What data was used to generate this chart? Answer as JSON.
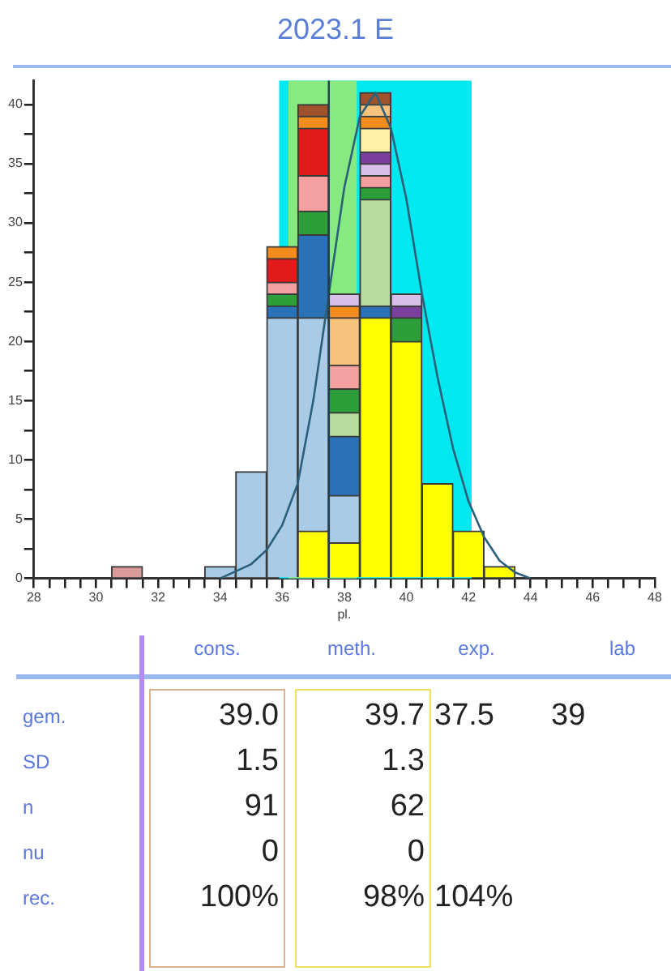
{
  "chart_data": {
    "type": "bar",
    "title": "2023.1 E",
    "xlabel": "pl.",
    "x": [
      31,
      32,
      33,
      34,
      35,
      36,
      37,
      38,
      39,
      40,
      41,
      42,
      43
    ],
    "series": [
      {
        "color": "#ffff00",
        "values": [
          null,
          null,
          null,
          null,
          null,
          null,
          4,
          3,
          22,
          20,
          8,
          4,
          1
        ]
      },
      {
        "color": "#a9cbe6",
        "values": [
          null,
          null,
          null,
          1,
          9,
          22,
          18,
          4,
          null,
          null,
          null,
          null,
          null
        ]
      },
      {
        "color": "#d99a9a",
        "values": [
          1,
          null,
          null,
          null,
          null,
          null,
          null,
          null,
          null,
          null,
          null,
          null,
          null
        ]
      },
      {
        "color": "#2a72b8",
        "values": [
          null,
          null,
          null,
          null,
          null,
          1,
          7,
          5,
          1,
          null,
          null,
          null,
          null
        ]
      },
      {
        "color": "#b8dc9e",
        "values": [
          null,
          null,
          null,
          null,
          null,
          null,
          null,
          2,
          9,
          null,
          null,
          null,
          null
        ]
      },
      {
        "color": "#2e9e3a",
        "values": [
          null,
          null,
          null,
          null,
          null,
          1,
          2,
          2,
          1,
          2,
          null,
          null,
          null
        ]
      },
      {
        "color": "#7b3f9e",
        "values": [
          null,
          null,
          null,
          null,
          null,
          null,
          null,
          null,
          null,
          1,
          null,
          null,
          null
        ]
      },
      {
        "color": "#f4a0a0",
        "values": [
          null,
          null,
          null,
          null,
          null,
          1,
          3,
          2,
          1,
          null,
          null,
          null,
          null
        ]
      },
      {
        "color": "#e31a1c",
        "values": [
          null,
          null,
          null,
          null,
          null,
          2,
          4,
          null,
          null,
          null,
          null,
          null,
          null
        ]
      },
      {
        "color": "#f6c27c",
        "values": [
          null,
          null,
          null,
          null,
          null,
          null,
          null,
          4,
          null,
          null,
          null,
          null,
          null
        ]
      },
      {
        "color": "#d8bfe8",
        "values": [
          null,
          null,
          null,
          null,
          null,
          null,
          null,
          null,
          1,
          1,
          null,
          null,
          null
        ]
      },
      {
        "color": "#7b3f9e",
        "values": [
          null,
          null,
          null,
          null,
          null,
          null,
          null,
          null,
          1,
          null,
          null,
          null,
          null
        ]
      },
      {
        "color": "#fff2a8",
        "values": [
          null,
          null,
          null,
          null,
          null,
          null,
          null,
          null,
          2,
          null,
          null,
          null,
          null
        ]
      },
      {
        "color": "#f28c1c",
        "values": [
          null,
          null,
          null,
          null,
          null,
          1,
          1,
          1,
          1,
          null,
          null,
          null,
          null
        ]
      },
      {
        "color": "#f6c27c",
        "values": [
          null,
          null,
          null,
          null,
          null,
          null,
          null,
          null,
          1,
          null,
          null,
          null,
          null
        ]
      },
      {
        "color": "#a0522d",
        "values": [
          null,
          null,
          null,
          null,
          null,
          null,
          1,
          null,
          1,
          null,
          null,
          null,
          null
        ]
      },
      {
        "color": "#d8bfe8",
        "values": [
          null,
          null,
          null,
          null,
          null,
          null,
          null,
          1,
          null,
          null,
          null,
          null,
          null
        ]
      },
      {
        "type": "line",
        "color": "#2b5f7a",
        "x": [
          34,
          34.5,
          35,
          35.5,
          36,
          36.5,
          37,
          37.5,
          38,
          38.5,
          39,
          39.5,
          40,
          40.5,
          41,
          41.5,
          42,
          42.5,
          43,
          43.5,
          44
        ],
        "values": [
          0,
          0.6,
          1.2,
          2.4,
          4.5,
          8,
          15,
          24,
          33,
          39,
          41,
          38,
          32,
          24,
          17,
          11,
          6.5,
          3.5,
          1.5,
          0.5,
          0
        ]
      }
    ],
    "marker": "none",
    "stacked": true,
    "xlim": [
      28,
      48
    ],
    "xticks": [
      28,
      {
        "value": 28.5,
        "label": null
      },
      {
        "value": 29,
        "label": null
      },
      {
        "value": 29.5,
        "label": null
      },
      30,
      {
        "value": 30.5,
        "label": null
      },
      {
        "value": 31,
        "label": null
      },
      {
        "value": 31.5,
        "label": null
      },
      32,
      {
        "value": 32.5,
        "label": null
      },
      {
        "value": 33,
        "label": null
      },
      {
        "value": 33.5,
        "label": null
      },
      34,
      {
        "value": 34.5,
        "label": null
      },
      {
        "value": 35,
        "label": null
      },
      {
        "value": 35.5,
        "label": null
      },
      36,
      {
        "value": 36.5,
        "label": null
      },
      {
        "value": 37,
        "label": null
      },
      {
        "value": 37.5,
        "label": null
      },
      38,
      {
        "value": 38.5,
        "label": null
      },
      {
        "value": 39,
        "label": null
      },
      {
        "value": 39.5,
        "label": null
      },
      40,
      {
        "value": 40.5,
        "label": null
      },
      {
        "value": 41,
        "label": null
      },
      {
        "value": 41.5,
        "label": null
      },
      42,
      {
        "value": 42.5,
        "label": null
      },
      {
        "value": 43,
        "label": null
      },
      {
        "value": 43.5,
        "label": null
      },
      44,
      {
        "value": 44.5,
        "label": null
      },
      {
        "value": 45,
        "label": null
      },
      {
        "value": 45.5,
        "label": null
      },
      46,
      {
        "value": 46.5,
        "label": null
      },
      {
        "value": 47,
        "label": null
      },
      {
        "value": 47.5,
        "label": null
      },
      48
    ],
    "ylim": [
      0,
      42
    ],
    "yticks": [
      0,
      {
        "value": 2.5,
        "label": null
      },
      5,
      {
        "value": 7.5,
        "label": null
      },
      10,
      {
        "value": 12.5,
        "label": null
      },
      15,
      {
        "value": 17.5,
        "label": null
      },
      20,
      {
        "value": 22.5,
        "label": null
      },
      25,
      {
        "value": 27.5,
        "label": null
      },
      30,
      {
        "value": 32.5,
        "label": null
      },
      35,
      {
        "value": 37.5,
        "label": null
      },
      40
    ],
    "bands": [
      {
        "axis": "x",
        "from": 35.9,
        "to": 42.1,
        "color": "#00e8f0"
      },
      {
        "axis": "x",
        "from": 36.2,
        "to": 38.4,
        "color": "#86ea80"
      }
    ],
    "ref_lines": [
      {
        "axis": "x",
        "value": 37.5,
        "color": "#1f3f4f"
      }
    ],
    "annotations": [
      "cons.",
      "meth.",
      "exp.",
      "lab",
      "gem.",
      "39.0",
      "39.7",
      "37.5",
      "39",
      "SD",
      "1.5",
      "1.3",
      "n",
      "91",
      "62",
      "nu",
      "0",
      "0",
      "rec.",
      "100%",
      "98%",
      "104%"
    ]
  }
}
